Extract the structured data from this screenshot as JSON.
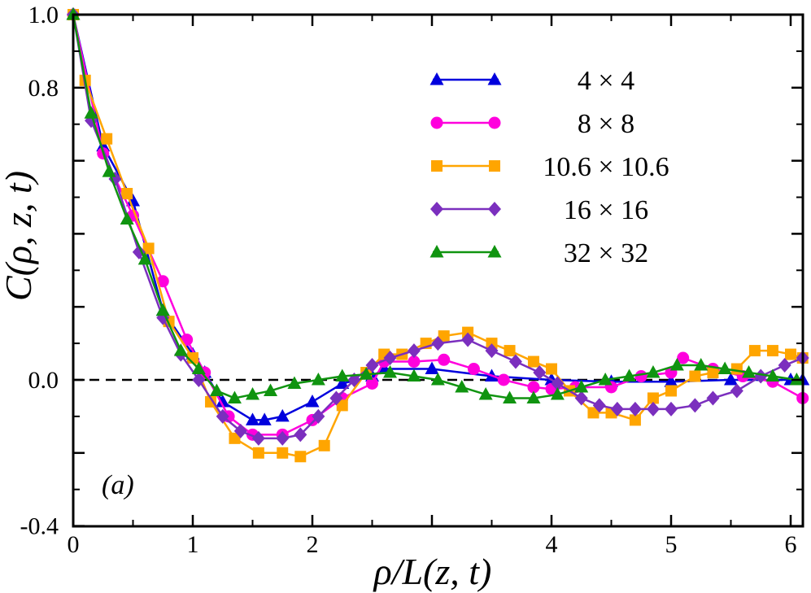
{
  "chart_data": {
    "type": "line",
    "xlabel": "ρ/L(z, t)",
    "ylabel": "C(ρ, z, t)",
    "xlim": [
      0,
      6.1
    ],
    "ylim": [
      -0.4,
      1.0
    ],
    "x_ticks": [
      "0",
      "1",
      "2",
      "4",
      "5",
      "6"
    ],
    "y_ticks": [
      "1.0",
      "0.8",
      "0.0",
      "-0.4"
    ],
    "panel_label": "(a)",
    "legend_position": "top-right",
    "reference_line": {
      "y": 0,
      "style": "dashed"
    },
    "series": [
      {
        "name": "4 × 4",
        "color": "#0000dd",
        "marker": "triangle",
        "x": [
          0,
          0.25,
          0.5,
          0.75,
          1.0,
          1.1,
          1.25,
          1.5,
          1.6,
          1.75,
          2.0,
          2.25,
          2.5,
          2.6,
          3.0,
          3.5,
          4.0,
          4.5,
          5.0,
          5.5,
          6.0,
          6.1
        ],
        "y": [
          1.0,
          0.64,
          0.49,
          0.19,
          0.07,
          0.02,
          -0.06,
          -0.11,
          -0.11,
          -0.1,
          -0.06,
          -0.01,
          0.01,
          0.03,
          0.03,
          0.01,
          0.0,
          -0.005,
          -0.005,
          0.0,
          0.0,
          0.0
        ]
      },
      {
        "name": "8 × 8",
        "color": "#ff00dd",
        "marker": "circle",
        "x": [
          0,
          0.25,
          0.5,
          0.75,
          0.95,
          1.1,
          1.3,
          1.5,
          1.75,
          2.0,
          2.25,
          2.5,
          2.6,
          2.85,
          3.1,
          3.35,
          3.6,
          3.85,
          4.0,
          4.2,
          4.5,
          4.75,
          5.0,
          5.1,
          5.35,
          5.6,
          5.85,
          6.1
        ],
        "y": [
          1.0,
          0.62,
          0.45,
          0.27,
          0.11,
          0.02,
          -0.1,
          -0.15,
          -0.15,
          -0.11,
          -0.05,
          -0.01,
          0.05,
          0.05,
          0.055,
          0.03,
          0.0,
          -0.02,
          -0.025,
          -0.02,
          -0.02,
          0.01,
          0.02,
          0.06,
          0.03,
          0.01,
          -0.005,
          -0.05
        ]
      },
      {
        "name": "10.6 × 10.6",
        "color": "#ffa500",
        "marker": "square",
        "x": [
          0,
          0.1,
          0.28,
          0.45,
          0.63,
          0.8,
          1.0,
          1.15,
          1.35,
          1.55,
          1.75,
          1.9,
          2.1,
          2.25,
          2.45,
          2.6,
          2.75,
          2.95,
          3.1,
          3.3,
          3.5,
          3.65,
          3.85,
          4.0,
          4.15,
          4.35,
          4.5,
          4.7,
          4.85,
          5.0,
          5.2,
          5.35,
          5.55,
          5.7,
          5.85,
          6.0,
          6.1
        ],
        "y": [
          1.0,
          0.82,
          0.66,
          0.51,
          0.36,
          0.16,
          0.06,
          -0.06,
          -0.16,
          -0.2,
          -0.2,
          -0.21,
          -0.18,
          -0.07,
          0.02,
          0.07,
          0.07,
          0.1,
          0.12,
          0.13,
          0.1,
          0.08,
          0.05,
          0.03,
          -0.03,
          -0.09,
          -0.09,
          -0.11,
          -0.05,
          -0.03,
          0.01,
          0.02,
          0.03,
          0.08,
          0.08,
          0.07,
          0.06
        ]
      },
      {
        "name": "16 × 16",
        "color": "#7b2fbe",
        "marker": "diamond",
        "x": [
          0,
          0.15,
          0.35,
          0.55,
          0.75,
          0.9,
          1.05,
          1.25,
          1.4,
          1.55,
          1.75,
          1.9,
          2.05,
          2.2,
          2.35,
          2.5,
          2.65,
          2.85,
          3.05,
          3.3,
          3.5,
          3.7,
          3.9,
          4.05,
          4.25,
          4.4,
          4.55,
          4.7,
          4.85,
          5.0,
          5.2,
          5.35,
          5.55,
          5.75,
          5.95,
          6.1
        ],
        "y": [
          1.0,
          0.71,
          0.55,
          0.35,
          0.17,
          0.07,
          0.0,
          -0.1,
          -0.14,
          -0.16,
          -0.16,
          -0.15,
          -0.1,
          -0.05,
          0.0,
          0.04,
          0.06,
          0.08,
          0.1,
          0.11,
          0.08,
          0.05,
          0.02,
          -0.01,
          -0.05,
          -0.07,
          -0.08,
          -0.08,
          -0.08,
          -0.08,
          -0.07,
          -0.05,
          -0.03,
          0.01,
          0.04,
          0.06
        ]
      },
      {
        "name": "32 × 32",
        "color": "#109410",
        "marker": "triangle",
        "x": [
          0,
          0.15,
          0.3,
          0.45,
          0.6,
          0.75,
          0.9,
          1.05,
          1.2,
          1.35,
          1.5,
          1.65,
          1.85,
          2.05,
          2.25,
          2.45,
          2.65,
          2.85,
          3.05,
          3.25,
          3.45,
          3.65,
          3.85,
          4.05,
          4.25,
          4.45,
          4.65,
          4.85,
          5.05,
          5.25,
          5.45,
          5.65,
          5.85,
          6.05
        ],
        "y": [
          1.0,
          0.73,
          0.57,
          0.44,
          0.33,
          0.19,
          0.08,
          0.03,
          -0.03,
          -0.05,
          -0.04,
          -0.03,
          -0.01,
          0.0,
          0.01,
          0.015,
          0.02,
          0.01,
          0.0,
          -0.02,
          -0.04,
          -0.05,
          -0.05,
          -0.04,
          -0.02,
          0.0,
          0.01,
          0.02,
          0.04,
          0.04,
          0.03,
          0.02,
          0.01,
          0.0
        ]
      }
    ]
  }
}
